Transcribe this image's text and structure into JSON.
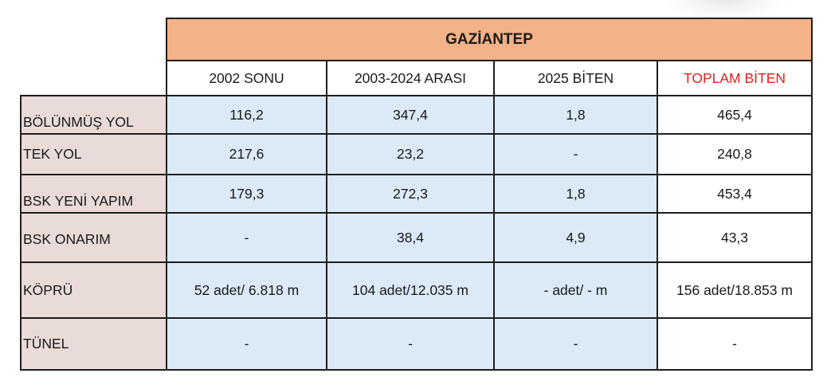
{
  "table": {
    "title": "GAZİANTEP",
    "columns": [
      "2002 SONU",
      "2003-2024 ARASI",
      "2025 BİTEN",
      "TOPLAM BİTEN"
    ],
    "rows": [
      {
        "label": "BÖLÜNMÜŞ YOL",
        "values": [
          "116,2",
          "347,4",
          "1,8",
          "465,4"
        ]
      },
      {
        "label": "TEK YOL",
        "values": [
          "217,6",
          "23,2",
          "-",
          "240,8"
        ]
      },
      {
        "label": "BSK YENİ YAPIM",
        "values": [
          "179,3",
          "272,3",
          "1,8",
          "453,4"
        ]
      },
      {
        "label": "BSK ONARIM",
        "values": [
          "-",
          "38,4",
          "4,9",
          "43,3"
        ]
      },
      {
        "label": "KÖPRÜ",
        "values": [
          "52 adet/ 6.818 m",
          "104 adet/12.035 m",
          "- adet/ - m",
          "156 adet/18.853 m"
        ]
      },
      {
        "label": "TÜNEL",
        "values": [
          "-",
          "-",
          "-",
          "-"
        ]
      }
    ]
  },
  "colors": {
    "header_fill": "#f3b288",
    "row_label_fill": "#e8dbd8",
    "value_fill": "#dce9f6",
    "total_header_text": "#e0201e"
  }
}
